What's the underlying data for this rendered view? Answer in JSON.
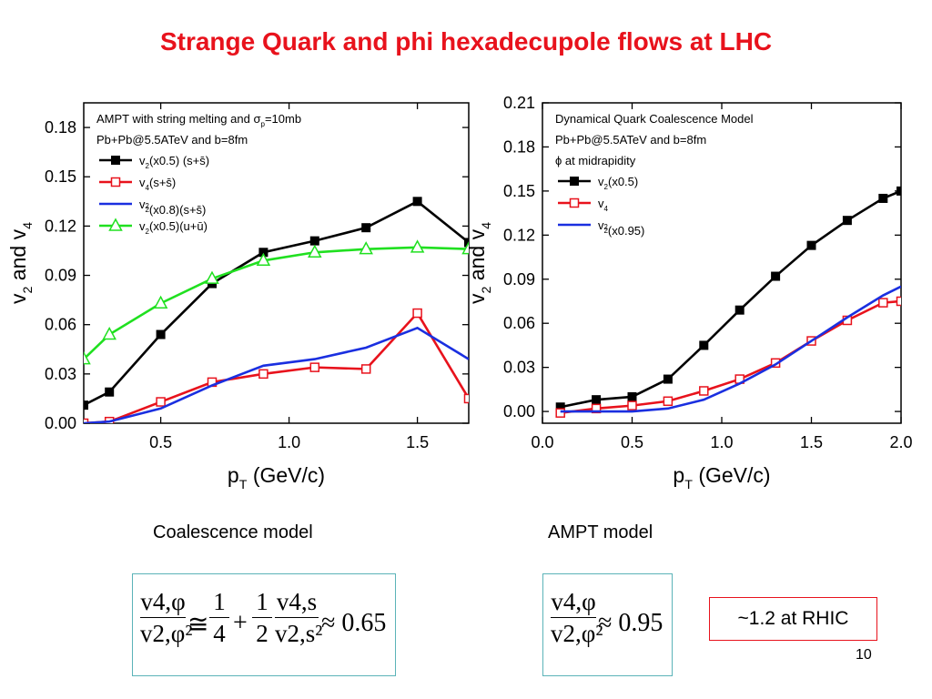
{
  "title": "Strange Quark and phi hexadecupole flows at LHC",
  "chart_data": [
    {
      "type": "line",
      "subtitle_lines": [
        "AMPT with string melting and σ_p=10mb",
        "Pb+Pb@5.5ATeV and b=8fm"
      ],
      "xlabel": "p_T (GeV/c)",
      "ylabel": "v_2 and v_4",
      "xlim": [
        0.2,
        1.7
      ],
      "ylim": [
        0.0,
        0.195
      ],
      "xticks": [
        "0.5",
        "1.0",
        "1.5"
      ],
      "yticks": [
        "0.00",
        "0.03",
        "0.06",
        "0.09",
        "0.12",
        "0.15",
        "0.18"
      ],
      "legend_position": "top-left",
      "series": [
        {
          "name": "v2(x0.5) (s+s̄)",
          "color": "#000000",
          "marker": "filled-square",
          "x": [
            0.2,
            0.3,
            0.5,
            0.7,
            0.9,
            1.1,
            1.3,
            1.5,
            1.7
          ],
          "y": [
            0.011,
            0.019,
            0.054,
            0.085,
            0.104,
            0.111,
            0.119,
            0.135,
            0.11
          ]
        },
        {
          "name": "v4(s+s̄)",
          "color": "#e8121c",
          "marker": "open-square",
          "x": [
            0.2,
            0.3,
            0.5,
            0.7,
            0.9,
            1.1,
            1.3,
            1.5,
            1.7
          ],
          "y": [
            0.0,
            0.001,
            0.013,
            0.025,
            0.03,
            0.034,
            0.033,
            0.067,
            0.015
          ]
        },
        {
          "name": "v2²(x0.8)(s+s̄)",
          "color": "#1a2fe0",
          "marker": "none",
          "x": [
            0.2,
            0.3,
            0.5,
            0.7,
            0.9,
            1.1,
            1.3,
            1.5,
            1.7
          ],
          "y": [
            0.0,
            0.001,
            0.009,
            0.023,
            0.035,
            0.039,
            0.046,
            0.058,
            0.039
          ]
        },
        {
          "name": "v2(x0.5)(u+ū)",
          "color": "#20e020",
          "marker": "open-triangle",
          "x": [
            0.2,
            0.3,
            0.5,
            0.7,
            0.9,
            1.1,
            1.3,
            1.5,
            1.7
          ],
          "y": [
            0.039,
            0.054,
            0.073,
            0.088,
            0.099,
            0.104,
            0.106,
            0.107,
            0.106
          ]
        }
      ]
    },
    {
      "type": "line",
      "subtitle_lines": [
        "Dynamical Quark Coalescence Model",
        "Pb+Pb@5.5ATeV and b=8fm",
        "ϕ at midrapidity"
      ],
      "xlabel": "p_T (GeV/c)",
      "ylabel": "v_2 and v_4",
      "xlim": [
        0.0,
        2.0
      ],
      "ylim": [
        -0.008,
        0.21
      ],
      "xticks": [
        "0.0",
        "0.5",
        "1.0",
        "1.5",
        "2.0"
      ],
      "yticks": [
        "0.00",
        "0.03",
        "0.06",
        "0.09",
        "0.12",
        "0.15",
        "0.18",
        "0.21"
      ],
      "legend_position": "top-left",
      "series": [
        {
          "name": "v2(x0.5)",
          "color": "#000000",
          "marker": "filled-square",
          "x": [
            0.1,
            0.3,
            0.5,
            0.7,
            0.9,
            1.1,
            1.3,
            1.5,
            1.7,
            1.9,
            2.0
          ],
          "y": [
            0.003,
            0.008,
            0.01,
            0.022,
            0.045,
            0.069,
            0.092,
            0.113,
            0.13,
            0.145,
            0.15
          ]
        },
        {
          "name": "v4",
          "color": "#e8121c",
          "marker": "open-square",
          "x": [
            0.1,
            0.3,
            0.5,
            0.7,
            0.9,
            1.1,
            1.3,
            1.5,
            1.7,
            1.9,
            2.0
          ],
          "y": [
            -0.001,
            0.002,
            0.004,
            0.007,
            0.014,
            0.022,
            0.033,
            0.048,
            0.062,
            0.074,
            0.075
          ]
        },
        {
          "name": "v2²(x0.95)",
          "color": "#1a2fe0",
          "marker": "none",
          "x": [
            0.1,
            0.3,
            0.5,
            0.7,
            0.9,
            1.1,
            1.3,
            1.5,
            1.7,
            1.9,
            2.0
          ],
          "y": [
            0.0,
            0.0,
            0.0,
            0.002,
            0.008,
            0.019,
            0.032,
            0.048,
            0.064,
            0.079,
            0.085
          ]
        }
      ]
    }
  ],
  "captions": {
    "left": "Coalescence model",
    "right": "AMPT model"
  },
  "formula_left": {
    "frac1_num": "v4,φ",
    "frac1_den": "v2,φ²",
    "op1": "≅",
    "frac2_num": "1",
    "frac2_den": "4",
    "op2": "+",
    "frac3_num": "1",
    "frac3_den": "2",
    "frac4_num": "v4,s",
    "frac4_den": "v2,s²",
    "result": "≈ 0.65"
  },
  "formula_right": {
    "frac1_num": "v4,φ",
    "frac1_den": "v2,φ²",
    "result": "≈ 0.95"
  },
  "rhic_note": "~1.2 at RHIC",
  "page_number": "10"
}
